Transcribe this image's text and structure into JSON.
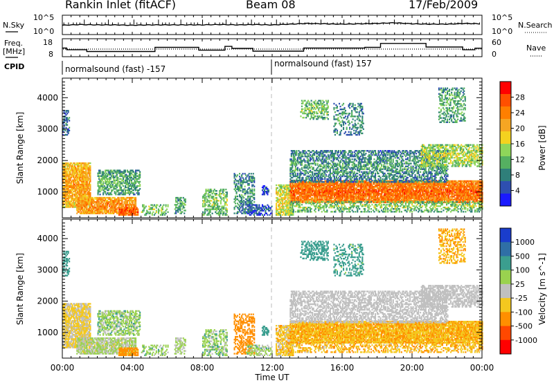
{
  "header": {
    "station": "Rankin Inlet (fitACF)",
    "beam": "Beam 08",
    "date": "17/Feb/2009"
  },
  "colors": {
    "power": [
      "#1a1aff",
      "#2e4fb0",
      "#2f7f7a",
      "#55b061",
      "#8fd65a",
      "#f4d21f",
      "#f5a623",
      "#ff7f00",
      "#ff4f00",
      "#ff0000"
    ],
    "velocity": [
      "#ff0000",
      "#ff4800",
      "#ff8f00",
      "#f4c81f",
      "#c0c0c0",
      "#9ad24f",
      "#3b9e8f",
      "#2f6fa6",
      "#1a3dcc"
    ],
    "groundscatter": "#c0c0c0",
    "midnight_line": "#bbbbbb"
  },
  "chart_data": [
    {
      "name": "nsky-nsearch",
      "type": "line",
      "xlabel": "",
      "left_label": "N.Sky",
      "right_label": "N.Search",
      "left_ticks": [
        "10^5",
        "10^0"
      ],
      "right_ticks": [
        "10^5",
        "10^0"
      ],
      "x_hours": [
        0,
        1,
        2,
        3,
        4,
        5,
        6,
        7,
        8,
        9,
        10,
        11,
        12,
        13,
        14,
        15,
        16,
        17,
        18,
        19,
        20,
        21,
        22,
        23,
        24
      ],
      "y_log_noise": [
        2.4,
        2.6,
        2.5,
        2.5,
        2.4,
        2.5,
        2.5,
        2.5,
        2.5,
        2.6,
        2.5,
        2.6,
        2.5,
        2.7,
        2.9,
        2.8,
        2.7,
        2.8,
        2.9,
        3.1,
        2.8,
        2.7,
        2.7,
        2.9,
        2.8
      ]
    },
    {
      "name": "freq-nave",
      "type": "line",
      "left_label_1": "Freq.",
      "left_label_2": "[MHz]",
      "right_label": "Nave",
      "left_ticks": [
        "18",
        "8"
      ],
      "right_ticks": [
        "60",
        "0"
      ],
      "freq_steps": [
        [
          0,
          12.8
        ],
        [
          0.25,
          11.8
        ],
        [
          1.4,
          10.7
        ],
        [
          5.3,
          13.2
        ],
        [
          7.8,
          11.5
        ],
        [
          9.3,
          13.8
        ],
        [
          9.7,
          12.6
        ],
        [
          10.9,
          10.9
        ],
        [
          12,
          10.9
        ],
        [
          13.8,
          12.8
        ],
        [
          17.3,
          13.2
        ],
        [
          18.2,
          15.6
        ],
        [
          20.8,
          13.4
        ],
        [
          22.9,
          11.8
        ],
        [
          23.6,
          12.7
        ],
        [
          24,
          12.7
        ]
      ],
      "nave_level": 25,
      "cpid_label": "CPID",
      "cpid_segments": [
        {
          "start_hour": 0,
          "text": "normalsound (fast) -157"
        },
        {
          "start_hour": 12,
          "text": "normalsound (fast) 157"
        }
      ]
    },
    {
      "name": "power-rti",
      "type": "heatmap",
      "ylabel": "Slant Range [km]",
      "yticks": [
        1000,
        2000,
        3000,
        4000
      ],
      "ylim": [
        200,
        4600
      ],
      "xlim": [
        0,
        24
      ],
      "colorbar_label": "Power [dB]",
      "colorbar_ticks": [
        "4",
        "8",
        "12",
        "16",
        "20",
        "24",
        "28"
      ]
    },
    {
      "name": "velocity-rti",
      "type": "heatmap",
      "ylabel": "Slant Range [km]",
      "yticks": [
        1000,
        2000,
        3000,
        4000
      ],
      "ylim": [
        200,
        4600
      ],
      "xlim": [
        0,
        24
      ],
      "colorbar_label": "Velocity [m s^-1]",
      "colorbar_ticks": [
        "1000",
        "500",
        "100",
        "25",
        "-25",
        "-100",
        "-500",
        "-1000"
      ],
      "xticks": [
        "00:00",
        "04:00",
        "08:00",
        "12:00",
        "16:00",
        "20:00",
        "00:00"
      ],
      "xlabel": "Time UT"
    }
  ],
  "scatter_regions": [
    {
      "t0": 0.0,
      "t1": 1.6,
      "r0": 500,
      "r1": 1900,
      "p": 22,
      "v": -40,
      "d": 0.85
    },
    {
      "t0": 0.8,
      "t1": 4.2,
      "r0": 300,
      "r1": 800,
      "p": 24,
      "v": 30,
      "d": 0.8
    },
    {
      "t0": 2.0,
      "t1": 4.4,
      "r0": 900,
      "r1": 1700,
      "p": 12,
      "v": 60,
      "d": 0.6
    },
    {
      "t0": 3.2,
      "t1": 4.3,
      "r0": 250,
      "r1": 500,
      "p": 28,
      "v": -150,
      "d": 0.9
    },
    {
      "t0": 0.0,
      "t1": 0.4,
      "r0": 2800,
      "r1": 3600,
      "p": 8,
      "v": 200,
      "d": 0.5
    },
    {
      "t0": 4.5,
      "t1": 6.0,
      "r0": 250,
      "r1": 600,
      "p": 14,
      "v": 60,
      "d": 0.35
    },
    {
      "t0": 6.4,
      "t1": 7.0,
      "r0": 300,
      "r1": 800,
      "p": 12,
      "v": 40,
      "d": 0.5
    },
    {
      "t0": 8.0,
      "t1": 9.4,
      "r0": 250,
      "r1": 1100,
      "p": 14,
      "v": 60,
      "d": 0.5
    },
    {
      "t0": 9.8,
      "t1": 11.0,
      "r0": 300,
      "r1": 1600,
      "p": 10,
      "v": -200,
      "d": 0.45
    },
    {
      "t0": 10.5,
      "t1": 12.0,
      "r0": 250,
      "r1": 600,
      "p": 6,
      "v": 50,
      "d": 0.55
    },
    {
      "t0": 11.4,
      "t1": 11.8,
      "r0": 900,
      "r1": 1200,
      "p": 6,
      "v": 300,
      "d": 0.6
    },
    {
      "t0": 12.2,
      "t1": 13.2,
      "r0": 250,
      "r1": 1200,
      "p": 18,
      "v": -60,
      "d": 0.7
    },
    {
      "t0": 13.0,
      "t1": 24.0,
      "r0": 650,
      "r1": 1350,
      "p": 26,
      "v": -90,
      "d": 0.9
    },
    {
      "t0": 13.0,
      "t1": 22.0,
      "r0": 1300,
      "r1": 2300,
      "p": 10,
      "v": 10,
      "d": 0.55
    },
    {
      "t0": 13.0,
      "t1": 24.0,
      "r0": 350,
      "r1": 700,
      "p": 14,
      "v": -80,
      "d": 0.45
    },
    {
      "t0": 13.6,
      "t1": 15.2,
      "r0": 3300,
      "r1": 3900,
      "p": 14,
      "v": 300,
      "d": 0.5
    },
    {
      "t0": 15.5,
      "t1": 17.2,
      "r0": 2800,
      "r1": 3800,
      "p": 10,
      "v": 150,
      "d": 0.35
    },
    {
      "t0": 20.5,
      "t1": 24.0,
      "r0": 1800,
      "r1": 2500,
      "p": 16,
      "v": 5,
      "d": 0.6
    },
    {
      "t0": 21.5,
      "t1": 23.0,
      "r0": 3200,
      "r1": 4300,
      "p": 12,
      "v": -100,
      "d": 0.45
    }
  ]
}
